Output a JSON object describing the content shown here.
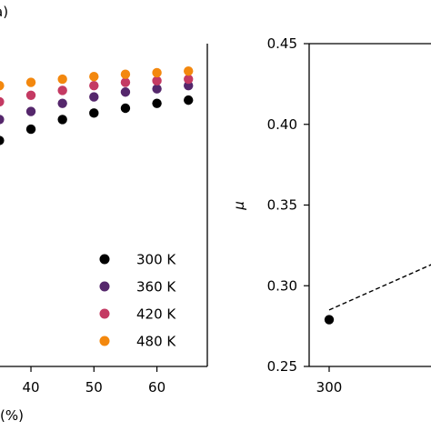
{
  "chart_data": [
    {
      "type": "scatter",
      "panel_label": "a)",
      "xlabel": "(%)",
      "ylabel": "",
      "xlim": [
        35,
        68
      ],
      "ylim": [
        0.0,
        1.0
      ],
      "x_ticks": [
        40,
        50,
        60
      ],
      "x_tick_labels": [
        "40",
        "50",
        "60"
      ],
      "legend_position": "lower-right",
      "series": [
        {
          "name": "300 K",
          "color": "#000000",
          "x": [
            35,
            40,
            45,
            50,
            55,
            60,
            65
          ],
          "y": [
            0.7,
            0.735,
            0.765,
            0.785,
            0.8,
            0.815,
            0.825
          ]
        },
        {
          "name": "360 K",
          "color": "#55276c",
          "x": [
            35,
            40,
            45,
            50,
            55,
            60,
            65
          ],
          "y": [
            0.765,
            0.79,
            0.815,
            0.835,
            0.85,
            0.86,
            0.87
          ]
        },
        {
          "name": "420 K",
          "color": "#c43a63",
          "x": [
            35,
            40,
            45,
            50,
            55,
            60,
            65
          ],
          "y": [
            0.82,
            0.84,
            0.855,
            0.87,
            0.88,
            0.885,
            0.89
          ]
        },
        {
          "name": "480 K",
          "color": "#f3880e",
          "x": [
            35,
            40,
            45,
            50,
            55,
            60,
            65
          ],
          "y": [
            0.87,
            0.88,
            0.89,
            0.898,
            0.905,
            0.91,
            0.915
          ]
        }
      ]
    },
    {
      "type": "scatter",
      "xlabel": "",
      "ylabel": "μ",
      "xlim": [
        290,
        400
      ],
      "ylim": [
        0.25,
        0.45
      ],
      "x_ticks": [
        300
      ],
      "x_tick_labels": [
        "300"
      ],
      "y_ticks": [
        0.25,
        0.3,
        0.35,
        0.4,
        0.45
      ],
      "y_tick_labels": [
        "0.25",
        "0.30",
        "0.35",
        "0.40",
        "0.45"
      ],
      "series": [
        {
          "name": "",
          "color": "#000000",
          "x": [
            300
          ],
          "y": [
            0.279
          ]
        }
      ],
      "fit_line": {
        "x": [
          300,
          400
        ],
        "y": [
          0.285,
          0.34
        ]
      }
    }
  ]
}
